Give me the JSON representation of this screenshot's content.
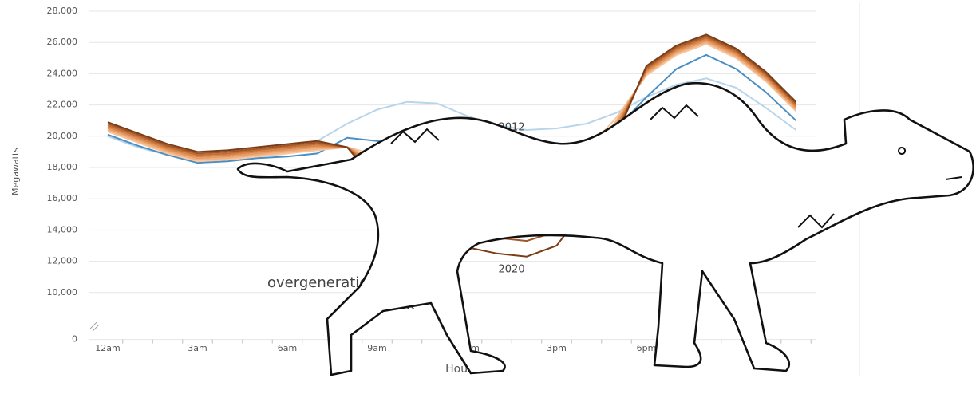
{
  "chart_data": {
    "type": "line",
    "y_label": "Megawatts",
    "x_label": "Hour",
    "x": [
      0,
      1,
      2,
      3,
      4,
      5,
      6,
      7,
      8,
      9,
      10,
      11,
      12,
      13,
      14,
      15,
      16,
      17,
      18,
      19,
      20,
      21,
      22,
      23
    ],
    "xlim": [
      0,
      24
    ],
    "xticks": [
      {
        "value": 0,
        "label": "12am"
      },
      {
        "value": 3,
        "label": "3am"
      },
      {
        "value": 6,
        "label": "6am"
      },
      {
        "value": 9,
        "label": "9am"
      },
      {
        "value": 12,
        "label": "12pm"
      },
      {
        "value": 15,
        "label": "3pm"
      },
      {
        "value": 18,
        "label": "6pm"
      }
    ],
    "ylim": [
      7000,
      28000
    ],
    "yticks": [
      0,
      {
        "value": 10000,
        "label": "10,000"
      },
      {
        "value": 12000,
        "label": "12,000"
      },
      {
        "value": 14000,
        "label": "14,000"
      },
      {
        "value": 16000,
        "label": "16,000"
      },
      {
        "value": 18000,
        "label": "18,000"
      },
      {
        "value": 20000,
        "label": "20,000"
      },
      {
        "value": 22000,
        "label": "22,000"
      },
      {
        "value": 24000,
        "label": "24,000"
      },
      {
        "value": 26000,
        "label": "26,000"
      },
      {
        "value": 28000,
        "label": "28,000"
      }
    ],
    "axis_break": true,
    "grid": true,
    "series": [
      {
        "name": "2012",
        "color": "#b9d5ea",
        "values": [
          20000,
          19300,
          18800,
          18500,
          18600,
          18700,
          18900,
          19700,
          20800,
          21700,
          22200,
          22100,
          21300,
          20700,
          20400,
          20500,
          20800,
          21500,
          22500,
          23300,
          23700,
          23100,
          21800,
          20400
        ]
      },
      {
        "color": "#4a8fc4",
        "values": [
          20100,
          19400,
          18800,
          18300,
          18400,
          18600,
          18700,
          18900,
          19900,
          19700,
          19400,
          19000,
          18600,
          18300,
          18000,
          18300,
          19000,
          20500,
          22500,
          24300,
          25200,
          24300,
          22800,
          21000
        ]
      },
      {
        "color": "#f6c7a2",
        "values": [
          20300,
          19600,
          18900,
          18400,
          18500,
          18700,
          18900,
          19100,
          19300,
          18800,
          18600,
          18300,
          18300,
          18500,
          18300,
          18400,
          19100,
          21200,
          23900,
          25200,
          25900,
          25000,
          23500,
          21600
        ]
      },
      {
        "color": "#f0b07f",
        "values": [
          20400,
          19700,
          19000,
          18500,
          18600,
          18800,
          19000,
          19200,
          19300,
          18500,
          18000,
          17500,
          17400,
          17500,
          17300,
          17500,
          18500,
          21000,
          24000,
          25300,
          26000,
          25100,
          23600,
          21700
        ]
      },
      {
        "color": "#e79a61",
        "values": [
          20500,
          19800,
          19100,
          18600,
          18700,
          18900,
          19100,
          19300,
          19300,
          18200,
          17400,
          16700,
          16500,
          16500,
          16300,
          16600,
          17900,
          20800,
          24100,
          25400,
          26100,
          25200,
          23700,
          21800
        ]
      },
      {
        "color": "#d8844a",
        "values": [
          20600,
          19900,
          19200,
          18700,
          18800,
          19000,
          19200,
          19400,
          19300,
          17900,
          16800,
          15900,
          15600,
          15500,
          15300,
          15700,
          17300,
          20600,
          24200,
          25500,
          26200,
          25300,
          23800,
          21900
        ]
      },
      {
        "color": "#c06d36",
        "values": [
          20700,
          20000,
          19300,
          18800,
          18900,
          19100,
          19300,
          19500,
          19300,
          17600,
          16200,
          15100,
          14700,
          14500,
          14300,
          14800,
          16700,
          20400,
          24300,
          25600,
          26300,
          25400,
          23900,
          22000
        ]
      },
      {
        "color": "#a25626",
        "values": [
          20800,
          20100,
          19400,
          18900,
          19000,
          19200,
          19400,
          19600,
          19300,
          17300,
          15600,
          14300,
          13800,
          13500,
          13300,
          13900,
          16100,
          20200,
          24400,
          25700,
          26400,
          25500,
          24000,
          22100
        ]
      },
      {
        "name": "2020",
        "color": "#7a3d17",
        "values": [
          20900,
          20200,
          19500,
          19000,
          19100,
          19300,
          19500,
          19700,
          19300,
          17000,
          15000,
          13500,
          12900,
          12500,
          12300,
          13000,
          15500,
          20000,
          24500,
          25800,
          26500,
          25600,
          24100,
          22200
        ]
      }
    ],
    "annotations": [
      "overgeneration",
      "risk"
    ]
  }
}
